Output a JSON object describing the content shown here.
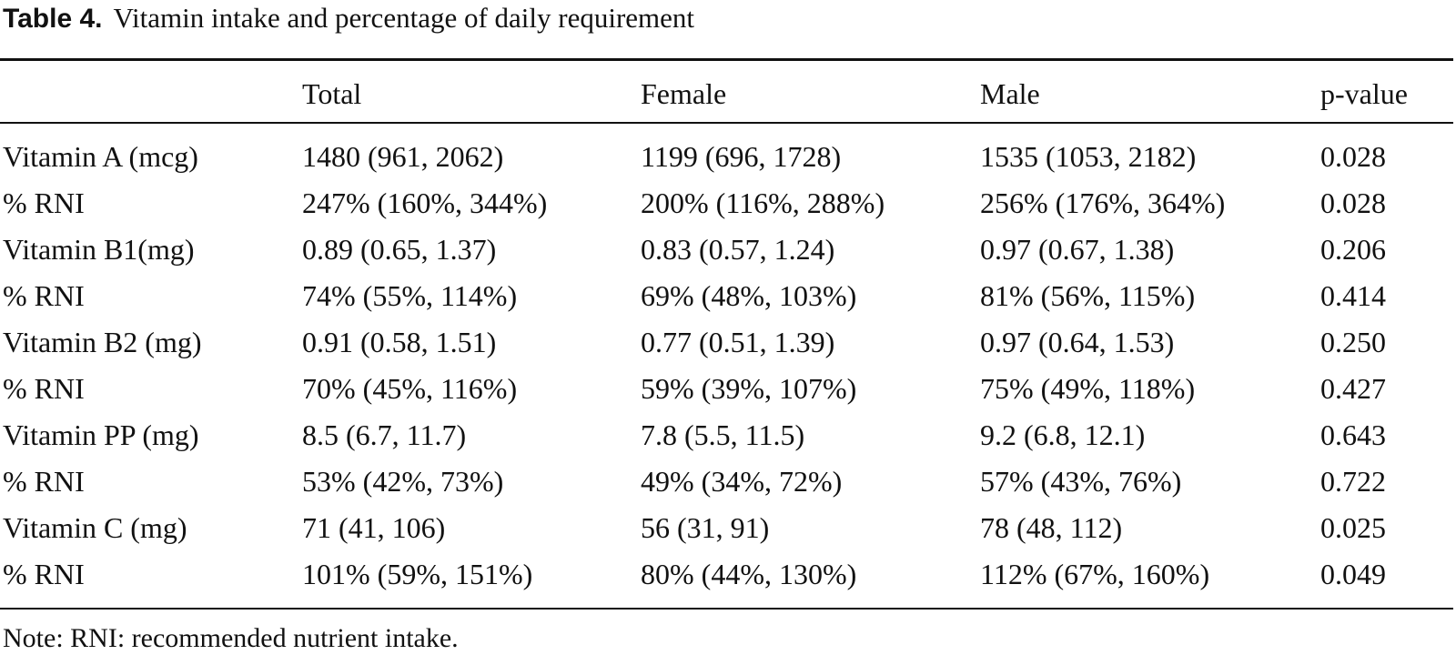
{
  "caption": {
    "label": "Table 4.",
    "text": "Vitamin intake and percentage of daily requirement"
  },
  "table": {
    "headers": [
      "",
      "Total",
      "Female",
      "Male",
      "p-value"
    ],
    "rows": [
      [
        "Vitamin A (mcg)",
        "1480 (961, 2062)",
        "1199 (696, 1728)",
        "1535 (1053, 2182)",
        "0.028"
      ],
      [
        "% RNI",
        "247% (160%, 344%)",
        "200% (116%, 288%)",
        "256% (176%, 364%)",
        "0.028"
      ],
      [
        "Vitamin B1(mg)",
        "0.89 (0.65, 1.37)",
        "0.83 (0.57, 1.24)",
        "0.97 (0.67, 1.38)",
        "0.206"
      ],
      [
        "% RNI",
        "74% (55%, 114%)",
        "69% (48%, 103%)",
        "81% (56%, 115%)",
        "0.414"
      ],
      [
        "Vitamin B2 (mg)",
        "0.91 (0.58, 1.51)",
        "0.77 (0.51, 1.39)",
        "0.97 (0.64, 1.53)",
        "0.250"
      ],
      [
        "% RNI",
        "70% (45%, 116%)",
        "59% (39%, 107%)",
        "75% (49%, 118%)",
        "0.427"
      ],
      [
        "Vitamin PP (mg)",
        "8.5 (6.7, 11.7)",
        "7.8 (5.5, 11.5)",
        "9.2 (6.8, 12.1)",
        "0.643"
      ],
      [
        "% RNI",
        "53% (42%, 73%)",
        "49% (34%, 72%)",
        "57% (43%, 76%)",
        "0.722"
      ],
      [
        "Vitamin C (mg)",
        "71 (41, 106)",
        "56 (31, 91)",
        "78 (48, 112)",
        "0.025"
      ],
      [
        "% RNI",
        "101% (59%, 151%)",
        "80% (44%, 130%)",
        "112% (67%, 160%)",
        "0.049"
      ]
    ]
  },
  "note": "Note: RNI: recommended nutrient intake."
}
